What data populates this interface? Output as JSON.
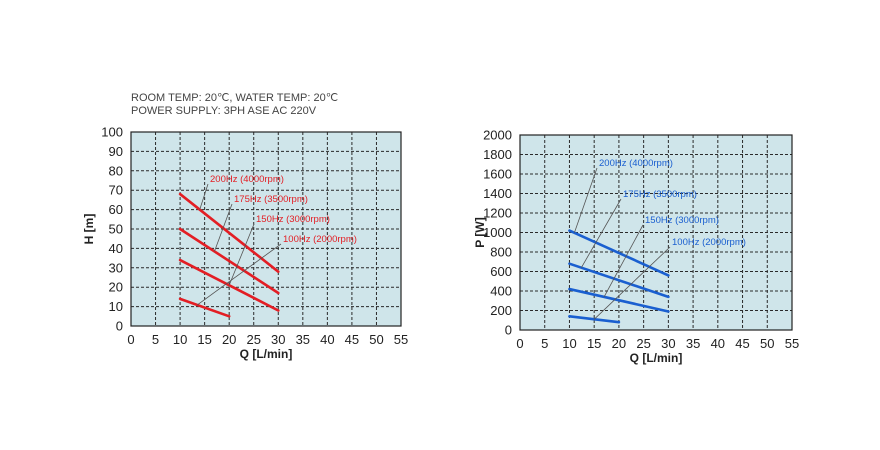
{
  "notes": {
    "line1": "ROOM TEMP: 20℃, WATER TEMP: 20℃",
    "line2": "POWER SUPPLY: 3PH ASE  AC 220V"
  },
  "colors": {
    "plot_bg": "#cfe5ea",
    "grid": "#2a2a2a",
    "head_series": "#e31e24",
    "power_series": "#1a5fd0"
  },
  "chart_data": [
    {
      "type": "line",
      "xlabel": "Q [L/min]",
      "ylabel": "H [m]",
      "xlim": [
        0,
        55
      ],
      "ylim": [
        0,
        100
      ],
      "xticks": [
        0,
        5,
        10,
        15,
        20,
        25,
        30,
        35,
        40,
        45,
        50,
        55
      ],
      "yticks": [
        0,
        10,
        20,
        30,
        40,
        50,
        60,
        70,
        80,
        90,
        100
      ],
      "grid": true,
      "series": [
        {
          "name": "200Hz (4000rpm)",
          "x": [
            10,
            30
          ],
          "y": [
            68,
            28
          ]
        },
        {
          "name": "175Hz (3500rpm)",
          "x": [
            10,
            30
          ],
          "y": [
            50,
            17
          ]
        },
        {
          "name": "150Hz (3000rpm)",
          "x": [
            10,
            30
          ],
          "y": [
            34,
            8
          ]
        },
        {
          "name": "100Hz (2000rpm)",
          "x": [
            10,
            20
          ],
          "y": [
            14,
            5
          ]
        }
      ]
    },
    {
      "type": "line",
      "xlabel": "Q [L/min]",
      "ylabel": "P [W]",
      "xlim": [
        0,
        55
      ],
      "ylim": [
        0,
        2000
      ],
      "xticks": [
        0,
        5,
        10,
        15,
        20,
        25,
        30,
        35,
        40,
        45,
        50,
        55
      ],
      "yticks": [
        0,
        200,
        400,
        600,
        800,
        1000,
        1200,
        1400,
        1600,
        1800,
        2000
      ],
      "grid": true,
      "series": [
        {
          "name": "200Hz (4000rpm)",
          "x": [
            10,
            30
          ],
          "y": [
            1020,
            560
          ]
        },
        {
          "name": "175Hz (3500rpm)",
          "x": [
            10,
            30
          ],
          "y": [
            680,
            340
          ]
        },
        {
          "name": "150Hz (3000rpm)",
          "x": [
            10,
            30
          ],
          "y": [
            420,
            190
          ]
        },
        {
          "name": "100Hz (2000rpm)",
          "x": [
            10,
            20
          ],
          "y": [
            140,
            80
          ]
        }
      ]
    }
  ]
}
